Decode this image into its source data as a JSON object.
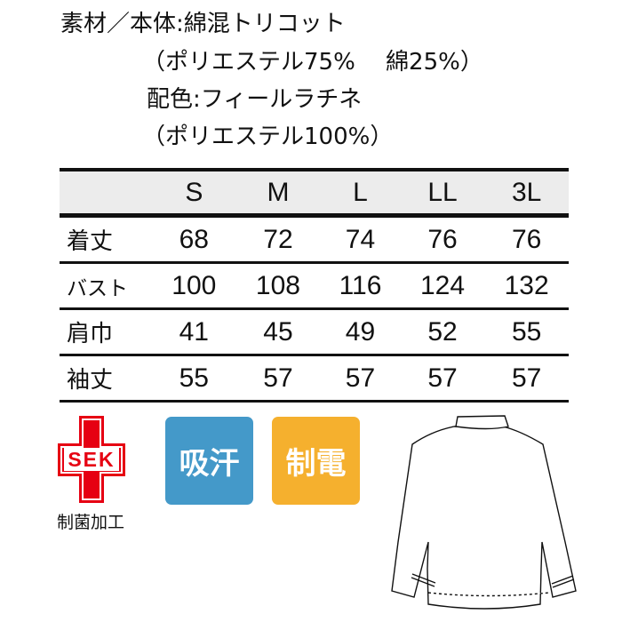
{
  "material": {
    "lines": [
      "素材／本体:綿混トリコット",
      "（ポリエステル75%　 綿25%）",
      "配色:フィールラチネ",
      "（ポリエステル100%）"
    ]
  },
  "size_table": {
    "headers": [
      "",
      "S",
      "M",
      "L",
      "LL",
      "3L"
    ],
    "rows": [
      {
        "label": "着丈",
        "values": [
          "68",
          "72",
          "74",
          "76",
          "76"
        ]
      },
      {
        "label": "バスト",
        "values": [
          "100",
          "108",
          "116",
          "124",
          "132"
        ]
      },
      {
        "label": "肩巾",
        "values": [
          "41",
          "45",
          "49",
          "52",
          "55"
        ]
      },
      {
        "label": "袖丈",
        "values": [
          "55",
          "57",
          "57",
          "57",
          "57"
        ]
      }
    ]
  },
  "badges": {
    "sek": {
      "logo_text": "SEK",
      "caption": "制菌加工",
      "color": "#e60012"
    },
    "sweat": {
      "label": "吸汗",
      "color": "#4499c9"
    },
    "antistatic": {
      "label": "制電",
      "color": "#f5b02e"
    }
  },
  "illustration": "shirt-back-icon"
}
